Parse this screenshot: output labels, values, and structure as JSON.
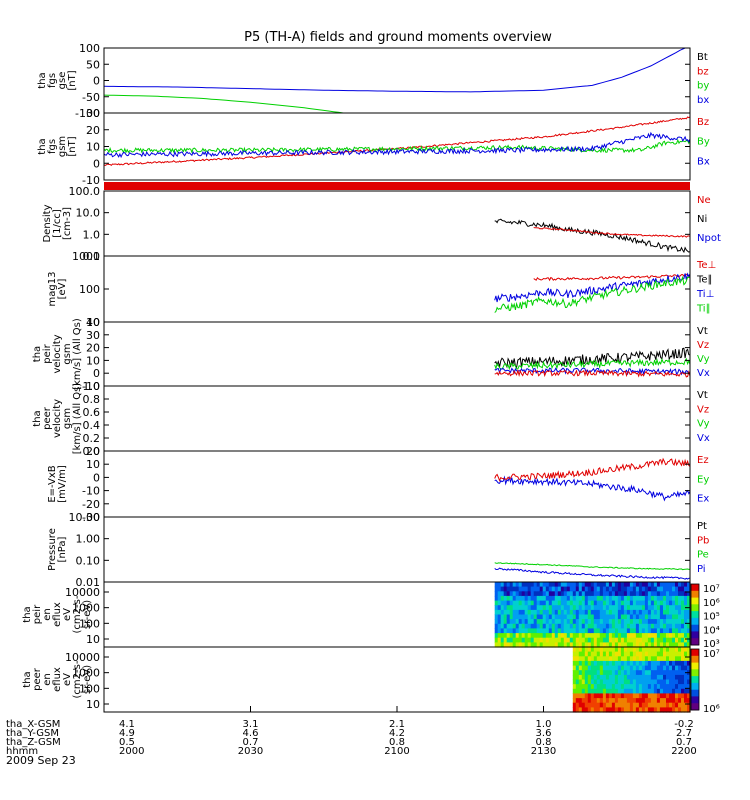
{
  "title": "P5 (TH-A) fields and ground moments overview",
  "date": "2009 Sep 23",
  "colors": {
    "black": "#000000",
    "red": "#e00000",
    "green": "#00d000",
    "blue": "#0000e0"
  },
  "chart_data": {
    "type": "line",
    "x_ticks": [
      "2000",
      "2030",
      "2100",
      "2130",
      "2200"
    ],
    "x_range_minutes": [
      0,
      120
    ],
    "orbit_rows": [
      {
        "label": "tha_X-GSM",
        "values": [
          "4.1",
          "3.1",
          "2.1",
          "1.0",
          "-0.2"
        ]
      },
      {
        "label": "tha_Y-GSM",
        "values": [
          "4.9",
          "4.6",
          "4.2",
          "3.6",
          "2.7"
        ]
      },
      {
        "label": "tha_Z-GSM",
        "values": [
          "0.5",
          "0.7",
          "0.8",
          "0.8",
          "0.7"
        ]
      },
      {
        "label": "hhmm",
        "values": [
          "2000",
          "2030",
          "2100",
          "2130",
          "2200"
        ]
      }
    ],
    "panels": [
      {
        "id": "fgs-gse",
        "ylabel": [
          "tha",
          "fgs",
          "gse",
          "[nT]"
        ],
        "yticks": [
          "100",
          "50",
          "0",
          "-50",
          "-100"
        ],
        "ylim": [
          -100,
          100
        ],
        "scale": "linear",
        "legend": [
          {
            "text": "Bt",
            "color": "black"
          },
          {
            "text": "bz",
            "color": "red"
          },
          {
            "text": "by",
            "color": "green"
          },
          {
            "text": "bx",
            "color": "blue"
          }
        ],
        "series": [
          {
            "name": "bx",
            "color": "blue",
            "points": [
              [
                0,
                -18
              ],
              [
                15,
                -20
              ],
              [
                30,
                -25
              ],
              [
                45,
                -30
              ],
              [
                60,
                -33
              ],
              [
                75,
                -35
              ],
              [
                90,
                -30
              ],
              [
                100,
                -15
              ],
              [
                106,
                10
              ],
              [
                112,
                45
              ],
              [
                117,
                85
              ],
              [
                120,
                110
              ]
            ]
          },
          {
            "name": "by",
            "color": "green",
            "points": [
              [
                0,
                -45
              ],
              [
                10,
                -48
              ],
              [
                20,
                -55
              ],
              [
                30,
                -67
              ],
              [
                40,
                -82
              ],
              [
                47,
                -96
              ],
              [
                50,
                -102
              ]
            ]
          }
        ]
      },
      {
        "id": "fgs-gsm",
        "ylabel": [
          "tha",
          "fgs",
          "gsm",
          "[nT]"
        ],
        "yticks": [
          "30",
          "20",
          "10",
          "0",
          "-10"
        ],
        "ylim": [
          -15,
          30
        ],
        "scale": "linear",
        "legend": [
          {
            "text": "Bz",
            "color": "red"
          },
          {
            "text": "By",
            "color": "green"
          },
          {
            "text": "Bx",
            "color": "blue"
          }
        ],
        "series": [
          {
            "name": "Bz",
            "color": "red",
            "noise": 0.6,
            "points": [
              [
                0,
                -5
              ],
              [
                30,
                0
              ],
              [
                60,
                6
              ],
              [
                90,
                14
              ],
              [
                105,
                20
              ],
              [
                120,
                27
              ]
            ]
          },
          {
            "name": "By",
            "color": "green",
            "noise": 1.4,
            "points": [
              [
                0,
                5
              ],
              [
                30,
                5
              ],
              [
                60,
                6
              ],
              [
                85,
                7
              ],
              [
                100,
                5
              ],
              [
                110,
                5
              ],
              [
                115,
                10
              ],
              [
                120,
                11
              ]
            ]
          },
          {
            "name": "Bx",
            "color": "blue",
            "noise": 1.6,
            "points": [
              [
                0,
                2
              ],
              [
                30,
                3
              ],
              [
                60,
                4
              ],
              [
                85,
                5
              ],
              [
                100,
                6
              ],
              [
                105,
                10
              ],
              [
                112,
                15
              ],
              [
                120,
                12
              ]
            ]
          }
        ]
      },
      {
        "id": "state-bar",
        "type": "bar-strip",
        "color": "red"
      },
      {
        "id": "density",
        "ylabel": [
          "Density",
          "[1/cc]",
          "[cm-3]"
        ],
        "yticks": [
          "100.0",
          "10.0",
          "1.0",
          "0.1"
        ],
        "ylim": [
          0.05,
          200
        ],
        "scale": "log",
        "legend": [
          {
            "text": "Ne",
            "color": "red"
          },
          {
            "text": "Ni",
            "color": "black"
          },
          {
            "text": "Npot",
            "color": "blue"
          }
        ],
        "series": [
          {
            "name": "Ni",
            "color": "black",
            "noise": 0.15,
            "points": [
              [
                80,
                4
              ],
              [
                85,
                3.5
              ],
              [
                90,
                2.5
              ],
              [
                95,
                1.4
              ],
              [
                100,
                1.0
              ],
              [
                105,
                0.6
              ],
              [
                110,
                0.3
              ],
              [
                115,
                0.15
              ],
              [
                120,
                0.09
              ]
            ]
          },
          {
            "name": "Ne",
            "color": "red",
            "noise": 0.04,
            "points": [
              [
                88,
                1.8
              ],
              [
                95,
                1.4
              ],
              [
                100,
                1.0
              ],
              [
                105,
                0.8
              ],
              [
                110,
                0.7
              ],
              [
                120,
                0.6
              ]
            ]
          }
        ]
      },
      {
        "id": "temperature",
        "ylabel": [
          "mag13",
          "[eV]"
        ],
        "yticks": [
          "1000",
          "100",
          "10"
        ],
        "ylim": [
          10,
          1000
        ],
        "scale": "log",
        "legend": [
          {
            "text": "Te⊥",
            "color": "red"
          },
          {
            "text": "Te∥",
            "color": "black"
          },
          {
            "text": "Ti⊥",
            "color": "blue"
          },
          {
            "text": "Ti∥",
            "color": "green"
          }
        ],
        "series": [
          {
            "name": "Te⊥",
            "color": "red",
            "noise": 0.04,
            "points": [
              [
                88,
                200
              ],
              [
                100,
                210
              ],
              [
                110,
                230
              ],
              [
                120,
                260
              ]
            ]
          },
          {
            "name": "Ti⊥",
            "color": "blue",
            "noise": 0.12,
            "points": [
              [
                80,
                50
              ],
              [
                85,
                60
              ],
              [
                90,
                80
              ],
              [
                95,
                70
              ],
              [
                100,
                90
              ],
              [
                105,
                120
              ],
              [
                110,
                150
              ],
              [
                115,
                200
              ],
              [
                120,
                250
              ]
            ]
          },
          {
            "name": "Ti∥",
            "color": "green",
            "noise": 0.12,
            "points": [
              [
                80,
                25
              ],
              [
                85,
                30
              ],
              [
                90,
                45
              ],
              [
                95,
                35
              ],
              [
                100,
                55
              ],
              [
                105,
                80
              ],
              [
                110,
                110
              ],
              [
                115,
                150
              ],
              [
                120,
                180
              ]
            ]
          }
        ]
      },
      {
        "id": "peir-velocity",
        "ylabel": [
          "tha",
          "peir",
          "velocity",
          "gsm",
          "[km/s] (All Qs)"
        ],
        "yticks": [
          "40",
          "30",
          "20",
          "10",
          "0",
          "-10"
        ],
        "ylim": [
          -10,
          40
        ],
        "scale": "linear",
        "legend": [
          {
            "text": "Vt",
            "color": "black"
          },
          {
            "text": "Vz",
            "color": "red"
          },
          {
            "text": "Vy",
            "color": "green"
          },
          {
            "text": "Vx",
            "color": "blue"
          }
        ],
        "series": [
          {
            "name": "Vt",
            "color": "black",
            "noise": 4,
            "points": [
              [
                80,
                8
              ],
              [
                90,
                9
              ],
              [
                100,
                11
              ],
              [
                110,
                13
              ],
              [
                120,
                16
              ]
            ]
          },
          {
            "name": "Vy",
            "color": "green",
            "noise": 2.5,
            "points": [
              [
                80,
                5
              ],
              [
                90,
                6
              ],
              [
                100,
                7
              ],
              [
                110,
                8
              ],
              [
                120,
                9
              ]
            ]
          },
          {
            "name": "Vx",
            "color": "blue",
            "noise": 2,
            "points": [
              [
                80,
                2
              ],
              [
                100,
                2
              ],
              [
                120,
                1
              ]
            ]
          },
          {
            "name": "Vz",
            "color": "red",
            "noise": 2,
            "points": [
              [
                80,
                0
              ],
              [
                100,
                0
              ],
              [
                120,
                -1
              ]
            ]
          }
        ]
      },
      {
        "id": "peer-velocity",
        "ylabel": [
          "tha",
          "peer",
          "velocity",
          "gsm",
          "[km/s] (All Qs)"
        ],
        "yticks": [
          "1.0",
          "0.8",
          "0.6",
          "0.4",
          "0.2",
          "0.0"
        ],
        "ylim": [
          0,
          1
        ],
        "scale": "linear",
        "legend": [
          {
            "text": "Vt",
            "color": "black"
          },
          {
            "text": "Vz",
            "color": "red"
          },
          {
            "text": "Vy",
            "color": "green"
          },
          {
            "text": "Vx",
            "color": "blue"
          }
        ],
        "series": []
      },
      {
        "id": "efield",
        "ylabel": [
          "E=-VxB",
          "[mV/m]"
        ],
        "yticks": [
          "20",
          "10",
          "0",
          "-10",
          "-20",
          "-30"
        ],
        "ylim": [
          -30,
          20
        ],
        "scale": "linear",
        "legend": [
          {
            "text": "Ez",
            "color": "red"
          },
          {
            "text": "Ey",
            "color": "green"
          },
          {
            "text": "Ex",
            "color": "blue"
          }
        ],
        "series": [
          {
            "name": "Ex",
            "color": "blue",
            "noise": 2.5,
            "points": [
              [
                80,
                -2
              ],
              [
                90,
                -3
              ],
              [
                100,
                -5
              ],
              [
                110,
                -10
              ],
              [
                115,
                -15
              ],
              [
                120,
                -12
              ]
            ]
          },
          {
            "name": "Ez",
            "color": "red",
            "noise": 2.5,
            "points": [
              [
                80,
                0
              ],
              [
                90,
                1
              ],
              [
                100,
                4
              ],
              [
                110,
                9
              ],
              [
                115,
                12
              ],
              [
                120,
                10
              ]
            ]
          }
        ]
      },
      {
        "id": "pressure",
        "ylabel": [
          "Pressure",
          "[nPa]"
        ],
        "yticks": [
          "10.00",
          "1.00",
          "0.10",
          "0.01"
        ],
        "ylim": [
          0.003,
          30
        ],
        "scale": "log",
        "legend": [
          {
            "text": "Pt",
            "color": "black"
          },
          {
            "text": "Pb",
            "color": "red"
          },
          {
            "text": "Pe",
            "color": "green"
          },
          {
            "text": "Pi",
            "color": "blue"
          }
        ],
        "series": [
          {
            "name": "Pe",
            "color": "green",
            "noise": 0.03,
            "points": [
              [
                80,
                0.045
              ],
              [
                90,
                0.035
              ],
              [
                100,
                0.025
              ],
              [
                110,
                0.02
              ],
              [
                120,
                0.018
              ]
            ]
          },
          {
            "name": "Pi",
            "color": "blue",
            "noise": 0.06,
            "points": [
              [
                80,
                0.02
              ],
              [
                90,
                0.012
              ],
              [
                100,
                0.008
              ],
              [
                110,
                0.006
              ],
              [
                120,
                0.005
              ]
            ]
          }
        ]
      },
      {
        "id": "peir-spectrogram",
        "type": "spectrogram",
        "ylabel": [
          "tha",
          "peir",
          "en",
          "eflux",
          "eV",
          "(cm2-s-",
          "sr-eV)"
        ],
        "yticks": [
          "10000",
          "1000",
          "100",
          "10"
        ],
        "start_minute": 80,
        "colorbar_ticks": [
          "10⁷",
          "10⁶",
          "10⁵",
          "10⁴",
          "10³"
        ]
      },
      {
        "id": "peer-spectrogram",
        "type": "spectrogram",
        "ylabel": [
          "tha",
          "peer",
          "en",
          "eflux",
          "eV",
          "(cm2-s-",
          "sr-eV)"
        ],
        "yticks": [
          "10000",
          "1000",
          "100",
          "10"
        ],
        "start_minute": 96,
        "colorbar_ticks": [
          "10⁷",
          "10⁶"
        ]
      }
    ]
  }
}
